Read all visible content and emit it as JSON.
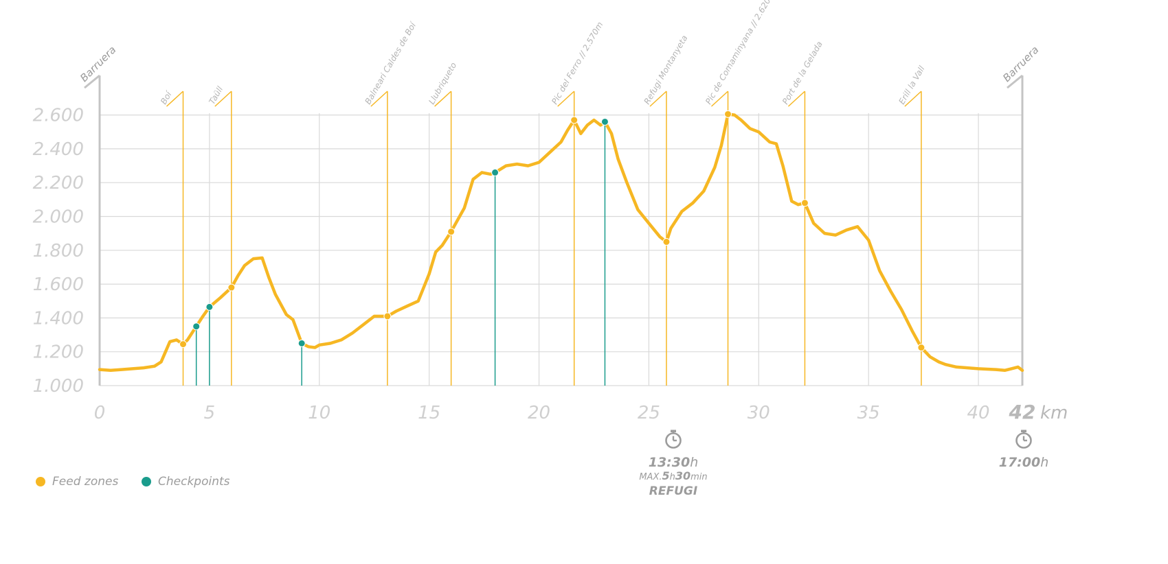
{
  "colors": {
    "profile": "#f6b723",
    "feed": "#f6b723",
    "checkpoint": "#1a9c8c",
    "grid": "#d9d9d9",
    "axis": "#c4c4c4"
  },
  "legend": {
    "feed_label": "Feed zones",
    "checkpoint_label": "Checkpoints"
  },
  "cutoffs": [
    {
      "icon": "stopwatch-icon",
      "time": "13:30",
      "unit": "h",
      "max_prefix": "MAX.",
      "max_h": "5",
      "max_h_unit": "h",
      "max_m": "30",
      "max_m_unit": "min",
      "place": "REFUGI"
    },
    {
      "icon": "stopwatch-icon",
      "time": "17:00",
      "unit": "h"
    }
  ],
  "chart_data": {
    "type": "area",
    "ylim": [
      1000,
      2700
    ],
    "xlim": [
      0,
      42
    ],
    "yticks": [
      1000,
      1200,
      1400,
      1600,
      1800,
      2000,
      2200,
      2400,
      2600
    ],
    "ytick_labels": [
      "1.000",
      "1.200",
      "1.400",
      "1.600",
      "1.800",
      "2.000",
      "2.200",
      "2.400",
      "2.600"
    ],
    "xticks": [
      0,
      5,
      10,
      15,
      20,
      25,
      30,
      35,
      40
    ],
    "xtick_labels": [
      "0",
      "5",
      "10",
      "15",
      "20",
      "25",
      "30",
      "35",
      "40"
    ],
    "x_end_label": "42",
    "x_unit": "km",
    "grid": true,
    "start_label": "Barruera",
    "end_label": "Barruera",
    "waypoints": [
      {
        "km": 3.8,
        "name": "Boí"
      },
      {
        "km": 6.0,
        "name": "Taüll"
      },
      {
        "km": 13.1,
        "name": "Balneari Caldes de Boí"
      },
      {
        "km": 16.0,
        "name": "Llubriqueto"
      },
      {
        "km": 21.6,
        "name": "Pic del Ferro // 2.570m"
      },
      {
        "km": 25.8,
        "name": "Refugi Montanyeta"
      },
      {
        "km": 28.6,
        "name": "Pic de Comaminyana // 2.620m"
      },
      {
        "km": 32.1,
        "name": "Port de la Gelada"
      },
      {
        "km": 37.4,
        "name": "Erill la Vall"
      }
    ],
    "feed_zones": [
      {
        "km": 3.8,
        "alt": 1245
      },
      {
        "km": 6.0,
        "alt": 1580
      },
      {
        "km": 13.1,
        "alt": 1410
      },
      {
        "km": 16.0,
        "alt": 1910
      },
      {
        "km": 21.6,
        "alt": 2570
      },
      {
        "km": 25.8,
        "alt": 1850
      },
      {
        "km": 28.6,
        "alt": 2605
      },
      {
        "km": 32.1,
        "alt": 2080
      },
      {
        "km": 37.4,
        "alt": 1225
      }
    ],
    "checkpoints": [
      {
        "km": 4.4,
        "alt": 1350
      },
      {
        "km": 5.0,
        "alt": 1465
      },
      {
        "km": 9.2,
        "alt": 1250
      },
      {
        "km": 18.0,
        "alt": 2260
      },
      {
        "km": 23.0,
        "alt": 2560
      }
    ],
    "series": [
      {
        "x": [
          0,
          0.5,
          1,
          1.5,
          2,
          2.5,
          2.8,
          3.0,
          3.2,
          3.5,
          3.8,
          4.0,
          4.4,
          4.7,
          5.0,
          5.5,
          6.0,
          6.3,
          6.6,
          7.0,
          7.4,
          7.7,
          8.0,
          8.5,
          8.8,
          9.2,
          9.5,
          9.8,
          10.0,
          10.5,
          11.0,
          11.5,
          12.0,
          12.5,
          13.1,
          13.5,
          14.0,
          14.5,
          15.0,
          15.3,
          15.6,
          16.0,
          16.3,
          16.6,
          17.0,
          17.4,
          17.8,
          18.0,
          18.5,
          19.0,
          19.5,
          20.0,
          20.5,
          21.0,
          21.3,
          21.6,
          21.9,
          22.2,
          22.5,
          22.8,
          23.0,
          23.3,
          23.6,
          24.0,
          24.5,
          25.0,
          25.5,
          25.8,
          26.0,
          26.5,
          27.0,
          27.5,
          28.0,
          28.3,
          28.6,
          28.9,
          29.2,
          29.6,
          30.0,
          30.5,
          30.8,
          31.1,
          31.5,
          31.8,
          32.1,
          32.5,
          33.0,
          33.5,
          34.0,
          34.5,
          35.0,
          35.5,
          36.0,
          36.5,
          37.0,
          37.4,
          37.8,
          38.2,
          38.5,
          39.0,
          40.0,
          40.8,
          41.2,
          41.5,
          41.8,
          42.0
        ],
        "y": [
          1095,
          1090,
          1095,
          1100,
          1105,
          1115,
          1140,
          1200,
          1260,
          1270,
          1245,
          1270,
          1350,
          1410,
          1465,
          1520,
          1580,
          1650,
          1710,
          1750,
          1755,
          1640,
          1540,
          1420,
          1390,
          1250,
          1230,
          1225,
          1240,
          1250,
          1270,
          1310,
          1360,
          1410,
          1410,
          1440,
          1470,
          1500,
          1660,
          1790,
          1830,
          1910,
          1980,
          2050,
          2220,
          2260,
          2250,
          2260,
          2300,
          2310,
          2300,
          2320,
          2380,
          2440,
          2510,
          2570,
          2490,
          2540,
          2570,
          2540,
          2560,
          2490,
          2340,
          2200,
          2040,
          1960,
          1880,
          1850,
          1930,
          2030,
          2080,
          2150,
          2290,
          2420,
          2605,
          2600,
          2570,
          2520,
          2500,
          2440,
          2430,
          2300,
          2090,
          2070,
          2080,
          1960,
          1900,
          1890,
          1920,
          1940,
          1860,
          1680,
          1560,
          1450,
          1320,
          1225,
          1170,
          1140,
          1125,
          1110,
          1100,
          1095,
          1090,
          1100,
          1110,
          1090
        ]
      }
    ]
  }
}
